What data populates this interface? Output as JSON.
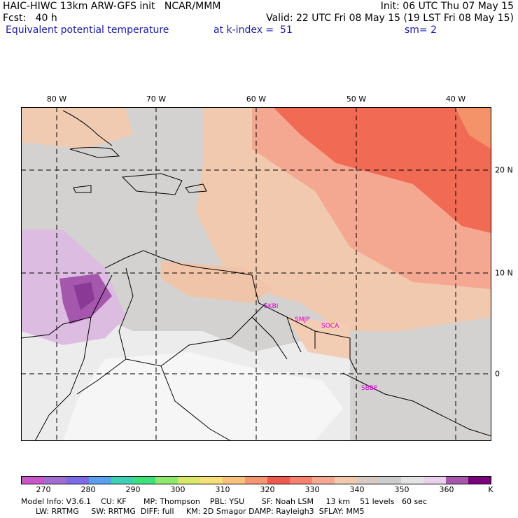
{
  "header": {
    "line1_left": "HAIC-HIWC 13km ARW-GFS init   NCAR/MMM",
    "line1_right": "Init: 06 UTC Thu 07 May 15",
    "line2_left": "Fcst:   40 h",
    "line2_right": "Valid: 22 UTC Fri 08 May 15 (19 LST Fri 08 May 15)",
    "line3_left": "Equivalent potential temperature",
    "line3_mid": "at k-index =  51",
    "line3_right": "sm= 2"
  },
  "axes": {
    "longitudes": [
      "80 W",
      "70 W",
      "60 W",
      "50 W",
      "40 W"
    ],
    "latitudes": [
      "20 N",
      "10 N",
      "0"
    ]
  },
  "stations": [
    "SKBI",
    "SMJP",
    "SOCA",
    "SBBE"
  ],
  "colorbar": {
    "labels": [
      "270",
      "280",
      "290",
      "300",
      "310",
      "320",
      "330",
      "340",
      "350",
      "360",
      "K"
    ],
    "colors": [
      "#c856c8",
      "#a06ed0",
      "#7a6be6",
      "#5aa0ec",
      "#3fd0b4",
      "#3ee07c",
      "#8ee86e",
      "#d8e86a",
      "#f5e07c",
      "#f8c27e",
      "#f49672",
      "#ef5a4e",
      "#f6826e",
      "#f4a892",
      "#f1c9ae",
      "#d7cac4",
      "#cdcdcd",
      "#e3e3e3",
      "#ead0ea",
      "#a457ad",
      "#780078"
    ]
  },
  "footer": {
    "line1": "Model Info: V3.6.1    CU: KF       MP: Thompson    PBL: YSU       SF: Noah LSM     13 km    51 levels   60 sec",
    "line2": "      LW: RRTMG     SW: RRTMG  DIFF: full     KM: 2D Smagor DAMP: Rayleigh3  SFLAY: MM5"
  }
}
